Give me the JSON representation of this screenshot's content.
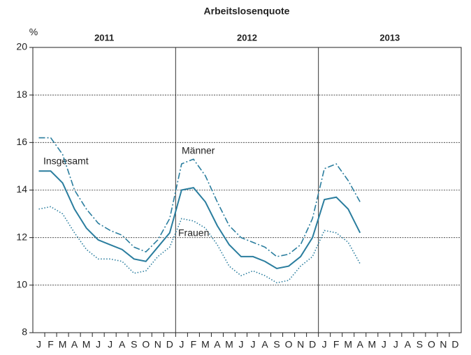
{
  "chart_data": {
    "type": "line",
    "title": "Arbeitslosenquote",
    "y_unit": "%",
    "year_labels": [
      "2011",
      "2012",
      "2013"
    ],
    "categories": [
      "J",
      "F",
      "M",
      "A",
      "M",
      "J",
      "J",
      "A",
      "S",
      "O",
      "N",
      "D",
      "J",
      "F",
      "M",
      "A",
      "M",
      "J",
      "J",
      "A",
      "S",
      "O",
      "N",
      "D",
      "J",
      "F",
      "M",
      "A",
      "M",
      "J",
      "J",
      "A",
      "S",
      "O",
      "N",
      "D"
    ],
    "series": [
      {
        "name": "Insgesamt",
        "color": "#2a7d9e",
        "dash": "solid",
        "values": [
          14.8,
          14.8,
          14.3,
          13.2,
          12.4,
          11.9,
          11.7,
          11.5,
          11.1,
          11.0,
          11.6,
          12.2,
          14.0,
          14.1,
          13.5,
          12.5,
          11.7,
          11.2,
          11.2,
          11.0,
          10.7,
          10.8,
          11.2,
          12.0,
          13.6,
          13.7,
          13.2,
          12.2,
          null,
          null,
          null,
          null,
          null,
          null,
          null,
          null
        ]
      },
      {
        "name": "Männer",
        "color": "#2a7d9e",
        "dash": "dashdot",
        "values": [
          16.2,
          16.2,
          15.5,
          14.0,
          13.2,
          12.6,
          12.3,
          12.1,
          11.6,
          11.4,
          11.9,
          12.8,
          15.1,
          15.3,
          14.6,
          13.5,
          12.5,
          12.0,
          11.8,
          11.6,
          11.2,
          11.3,
          11.7,
          12.8,
          14.9,
          15.1,
          14.4,
          13.5,
          null,
          null,
          null,
          null,
          null,
          null,
          null,
          null
        ]
      },
      {
        "name": "Frauen",
        "color": "#2a7d9e",
        "dash": "dotted",
        "values": [
          13.2,
          13.3,
          13.0,
          12.2,
          11.5,
          11.1,
          11.1,
          11.0,
          10.5,
          10.6,
          11.2,
          11.6,
          12.8,
          12.7,
          12.4,
          11.7,
          10.8,
          10.4,
          10.6,
          10.4,
          10.1,
          10.2,
          10.8,
          11.2,
          12.3,
          12.2,
          11.8,
          10.9,
          null,
          null,
          null,
          null,
          null,
          null,
          null,
          null
        ]
      }
    ],
    "ylim": [
      8,
      20
    ],
    "yticks": [
      8,
      10,
      12,
      14,
      16,
      18,
      20
    ],
    "grid": true
  }
}
